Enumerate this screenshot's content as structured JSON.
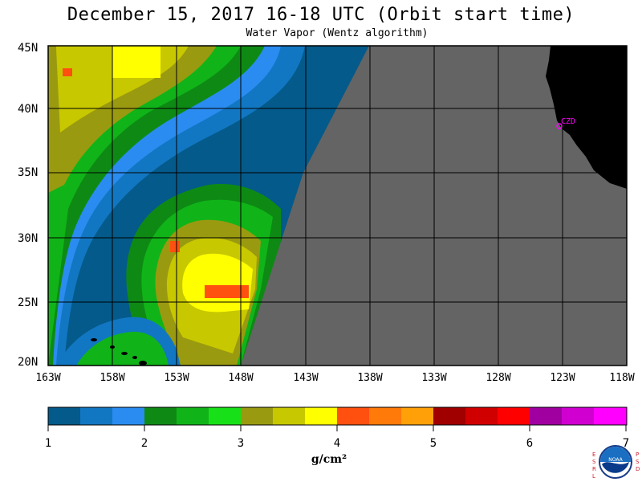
{
  "title": "December 15, 2017  16-18 UTC  (Orbit start time)",
  "subtitle": "Water Vapor (Wentz algorithm)",
  "lat_labels": [
    "45N",
    "40N",
    "35N",
    "30N",
    "25N",
    "20N"
  ],
  "lon_labels": [
    "163W",
    "158W",
    "153W",
    "148W",
    "143W",
    "138W",
    "133W",
    "128W",
    "123W",
    "118W"
  ],
  "station_label": "CZD",
  "colorbar": {
    "ticks": [
      "1",
      "2",
      "3",
      "4",
      "5",
      "6",
      "7"
    ],
    "unit": "g/cm²",
    "colors": [
      "#045a8a",
      "#1277c2",
      "#2a8cf0",
      "#0e8a14",
      "#10b418",
      "#18e018",
      "#9a9a10",
      "#c8c800",
      "#ffff00",
      "#ff5010",
      "#ff7a08",
      "#ffa008",
      "#a00000",
      "#d00000",
      "#ff0000",
      "#a000a0",
      "#d000d0",
      "#ff00ff"
    ]
  },
  "logo_side_letters": {
    "left": "ESRL",
    "right": "PSD"
  },
  "logo_text": "NOAA"
}
